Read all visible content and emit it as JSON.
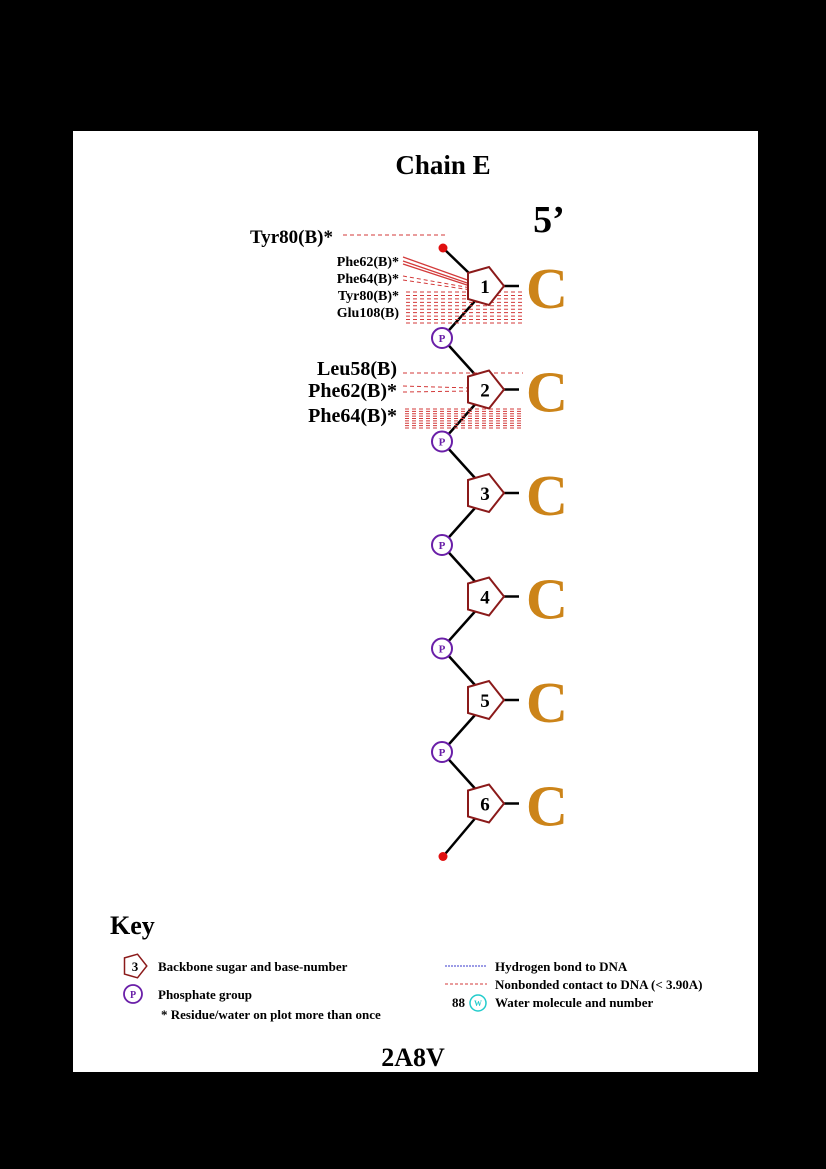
{
  "title": "Chain E",
  "end_label": "5’",
  "pdb_code": "2A8V",
  "colors": {
    "sugar": "#8b1a1a",
    "base": "#cc8419",
    "phosphate": "#6a1fa8",
    "terminus": "#e01010",
    "contact": "#d33a3a",
    "hbond": "#3a3acc",
    "water": "#22cccc"
  },
  "nucleotides": [
    {
      "number": "1",
      "base": "C"
    },
    {
      "number": "2",
      "base": "C"
    },
    {
      "number": "3",
      "base": "C"
    },
    {
      "number": "4",
      "base": "C"
    },
    {
      "number": "5",
      "base": "C"
    },
    {
      "number": "6",
      "base": "C"
    }
  ],
  "phosphate_label": "P",
  "contacts": {
    "top": {
      "label": "Tyr80(B)*",
      "type": "nonbonded"
    },
    "nucleotide_1": [
      {
        "label": "Phe62(B)*",
        "type": "nonbonded"
      },
      {
        "label": "Phe64(B)*",
        "type": "nonbonded"
      },
      {
        "label": "Tyr80(B)*",
        "type": "nonbonded"
      },
      {
        "label": "Glu108(B)",
        "type": "nonbonded"
      }
    ],
    "nucleotide_2": [
      {
        "label": "Leu58(B)",
        "type": "nonbonded"
      },
      {
        "label": "Phe62(B)*",
        "type": "nonbonded"
      },
      {
        "label": "Phe64(B)*",
        "type": "nonbonded"
      }
    ]
  },
  "key": {
    "title": "Key",
    "sugar_example_number": "3",
    "sugar_label": "Backbone sugar and base-number",
    "phosphate_symbol": "P",
    "phosphate_label": "Phosphate group",
    "multi_note": "* Residue/water on plot more than once",
    "hbond_label": "Hydrogen bond to DNA",
    "nonbonded_label": "Nonbonded contact to DNA (< 3.90A)",
    "water_number": "88",
    "water_symbol": "W",
    "water_label": "Water molecule and number"
  }
}
